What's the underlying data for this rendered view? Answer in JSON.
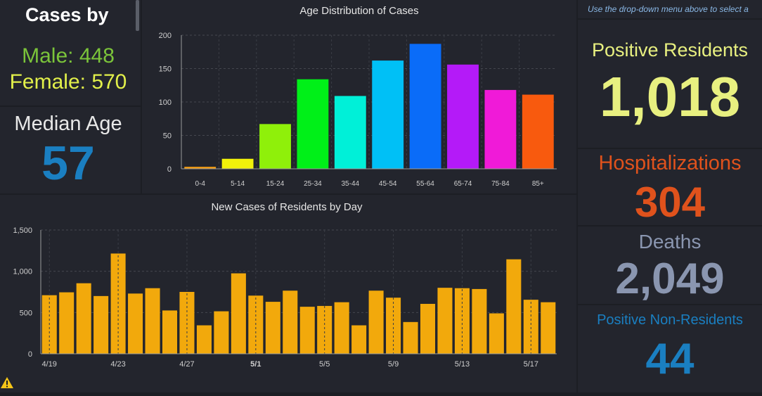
{
  "left": {
    "title": "Cases by",
    "male": "Male: 448",
    "female": "Female: 570",
    "median_label": "Median Age",
    "median_value": "57"
  },
  "right": {
    "note": "Use the drop-down menu above to select a",
    "positive_label": "Positive Residents",
    "positive_value": "1,018",
    "hosp_label": "Hospitalizations",
    "hosp_value": "304",
    "deaths_label": "Deaths",
    "deaths_value": "2,049",
    "nonres_label": "Positive Non-Residents",
    "nonres_value": "44"
  },
  "colors": {
    "male": "#7bc43a",
    "female": "#e2f04a",
    "median": "#1a7fc1",
    "positive": "#e8f080",
    "hosp": "#e0521c",
    "deaths": "#8a96b0",
    "nonres": "#1a7fc1",
    "daily_bar": "#f2a90c"
  },
  "warning_icon": "warning-triangle-icon",
  "chart_data": [
    {
      "type": "bar",
      "title": "Age Distribution of Cases",
      "categories": [
        "0-4",
        "5-14",
        "15-24",
        "25-34",
        "35-44",
        "45-54",
        "55-64",
        "65-74",
        "75-84",
        "85+"
      ],
      "values": [
        3,
        15,
        67,
        134,
        109,
        162,
        187,
        156,
        118,
        111
      ],
      "colors": [
        "#f39c12",
        "#f1f10a",
        "#8ff00a",
        "#00f018",
        "#00f0d8",
        "#00c0f6",
        "#0a6cf8",
        "#b41af8",
        "#f01ad8",
        "#f85a0e"
      ],
      "yticks": [
        0,
        50,
        100,
        150,
        200
      ],
      "ylim": [
        0,
        200
      ],
      "grid": true
    },
    {
      "type": "bar",
      "title": "New Cases of Residents by Day",
      "x": [
        "4/19",
        "4/20",
        "4/21",
        "4/22",
        "4/23",
        "4/24",
        "4/25",
        "4/26",
        "4/27",
        "4/28",
        "4/29",
        "4/30",
        "5/1",
        "5/2",
        "5/3",
        "5/4",
        "5/5",
        "5/6",
        "5/7",
        "5/8",
        "5/9",
        "5/10",
        "5/11",
        "5/12",
        "5/13",
        "5/14",
        "5/15",
        "5/16",
        "5/17",
        "5/18"
      ],
      "values": [
        710,
        745,
        855,
        700,
        1215,
        730,
        795,
        525,
        750,
        345,
        515,
        975,
        705,
        630,
        765,
        570,
        580,
        625,
        345,
        765,
        680,
        385,
        605,
        800,
        795,
        785,
        490,
        1145,
        655,
        625
      ],
      "xticklabels": [
        "4/19",
        "4/23",
        "4/27",
        "5/1",
        "5/5",
        "5/9",
        "5/13",
        "5/17"
      ],
      "yticks": [
        "0",
        "500",
        "1,000",
        "1,500"
      ],
      "ylim": [
        0,
        1500
      ],
      "grid": true
    }
  ]
}
